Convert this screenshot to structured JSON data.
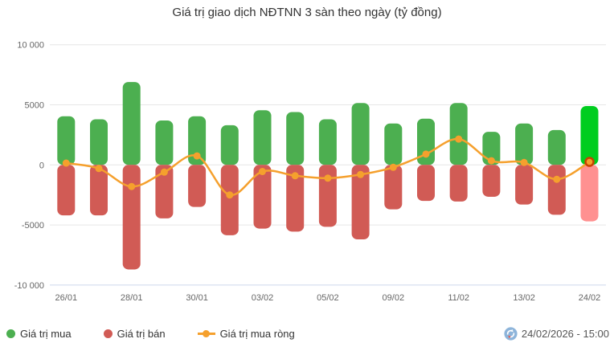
{
  "chart_data": {
    "type": "bar",
    "title": "Giá trị giao dịch NĐTNN 3 sàn theo ngày (tỷ đồng)",
    "categories": [
      "26/01",
      "",
      "28/01",
      "",
      "30/01",
      "",
      "03/02",
      "",
      "05/02",
      "",
      "09/02",
      "",
      "11/02",
      "",
      "13/02",
      "",
      "24/02"
    ],
    "series": [
      {
        "name": "Giá trị mua",
        "type": "column",
        "color": "#4caf50",
        "last_bar_color": "#00cd1f",
        "values": [
          4050,
          3800,
          6900,
          3700,
          4050,
          3300,
          4550,
          4400,
          3800,
          5150,
          3450,
          3850,
          5150,
          2750,
          3450,
          2900,
          4900
        ]
      },
      {
        "name": "Giá trị bán",
        "type": "column",
        "color": "#d15b55",
        "last_bar_color": "#ff9191",
        "values": [
          -4200,
          -4200,
          -8700,
          -4450,
          -3500,
          -5850,
          -5300,
          -5550,
          -5150,
          -6200,
          -3700,
          -3000,
          -3050,
          -2650,
          -3300,
          -4150,
          -4700
        ]
      },
      {
        "name": "Giá trị mua ròng",
        "type": "spline",
        "color": "#f5a02d",
        "last_point_ring_color": "#c94000",
        "values": [
          150,
          -300,
          -1800,
          -600,
          750,
          -2500,
          -550,
          -900,
          -1100,
          -800,
          -200,
          900,
          2150,
          350,
          200,
          -1200,
          250
        ]
      }
    ],
    "ylim": [
      -10000,
      10000
    ],
    "y_ticks": [
      10000,
      5000,
      0,
      -5000,
      -10000
    ],
    "y_tick_labels": [
      "10 000",
      "5000",
      "0",
      "-5000",
      "-10 000"
    ],
    "grid": true,
    "grid_color": "#e6e6e6",
    "axis_line_color": "#ccd6eb",
    "axis_text_color": "#666666",
    "legend_position": "bottom-left"
  },
  "legend": {
    "items": [
      {
        "label": "Giá trị mua",
        "color": "#4caf50",
        "marker": "circle"
      },
      {
        "label": "Giá trị bán",
        "color": "#d15b55",
        "marker": "circle"
      },
      {
        "label": "Giá trị mua ròng",
        "color": "#f5a02d",
        "marker": "line-dot"
      }
    ]
  },
  "footer": {
    "timestamp": "24/02/2026 - 15:00",
    "icon": "sync-icon",
    "icon_color": "#8db4da"
  }
}
